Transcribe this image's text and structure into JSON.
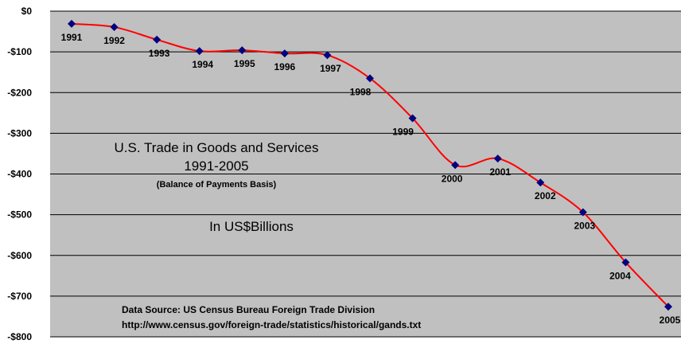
{
  "chart_data": {
    "type": "line",
    "title": "U.S. Trade in Goods and Services",
    "title_years": "1991-2005",
    "subtitle": "(Balance of Payments Basis)",
    "units_label": "In US$Billions",
    "source_line1": "Data Source:  US Census Bureau Foreign Trade Division",
    "source_line2": "http://www.census.gov/foreign-trade/statistics/historical/gands.txt",
    "ylim": [
      -800,
      0
    ],
    "y_ticks": [
      0,
      -100,
      -200,
      -300,
      -400,
      -500,
      -600,
      -700,
      -800
    ],
    "y_tick_labels": [
      "$0",
      "-$100",
      "-$200",
      "-$300",
      "-$400",
      "-$500",
      "-$600",
      "-$700",
      "-$800"
    ],
    "grid": true,
    "plot_background": "#c0c0c0",
    "line_color": "#ff0000",
    "marker_color": "#000080",
    "x": [
      "1991",
      "1992",
      "1993",
      "1994",
      "1995",
      "1996",
      "1997",
      "1998",
      "1999",
      "2000",
      "2001",
      "2002",
      "2003",
      "2004",
      "2005"
    ],
    "values": [
      -31,
      -39,
      -70,
      -98,
      -96,
      -104,
      -108,
      -165,
      -263,
      -378,
      -362,
      -421,
      -494,
      -617,
      -726
    ]
  }
}
